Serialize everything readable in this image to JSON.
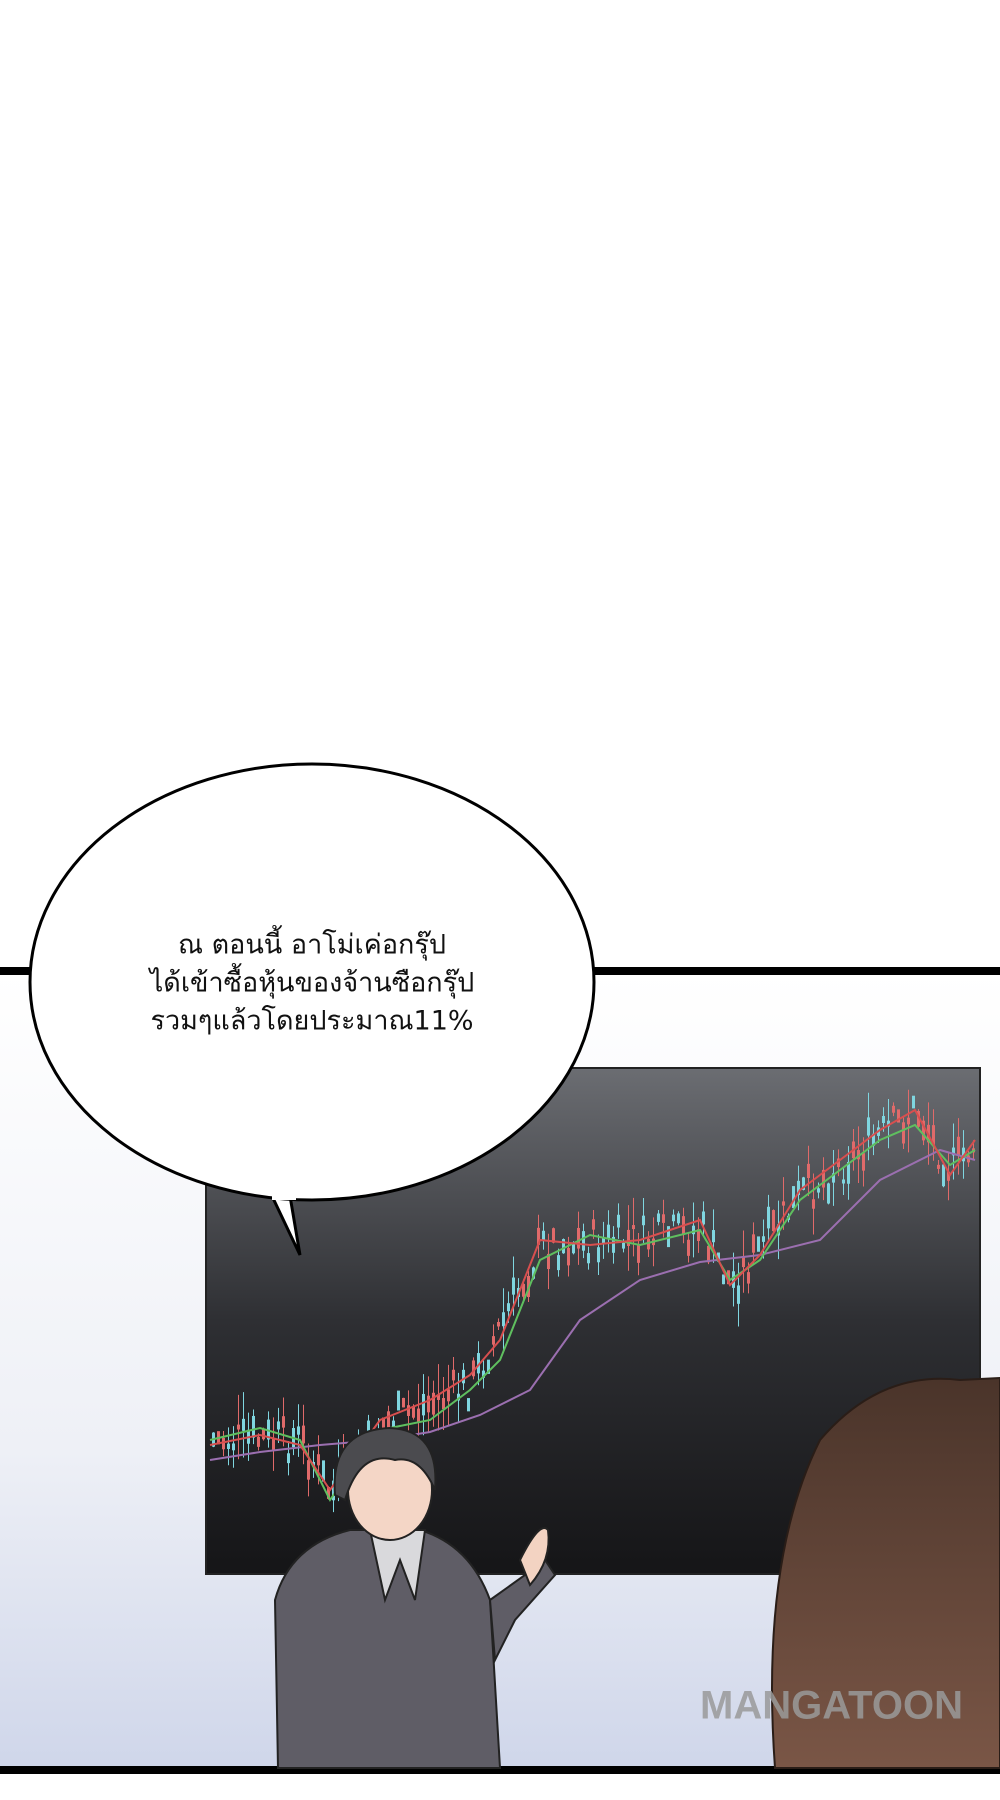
{
  "speech_bubble": {
    "lines": [
      "ณ ตอนนี้ อาโม่เค่อกรุ๊ป",
      "ได้เข้าซื้อหุ้นของจ้านซือกรุ๊ป",
      "รวมๆแล้วโดยประมาณ11%"
    ]
  },
  "watermark": "MANGATOON"
}
